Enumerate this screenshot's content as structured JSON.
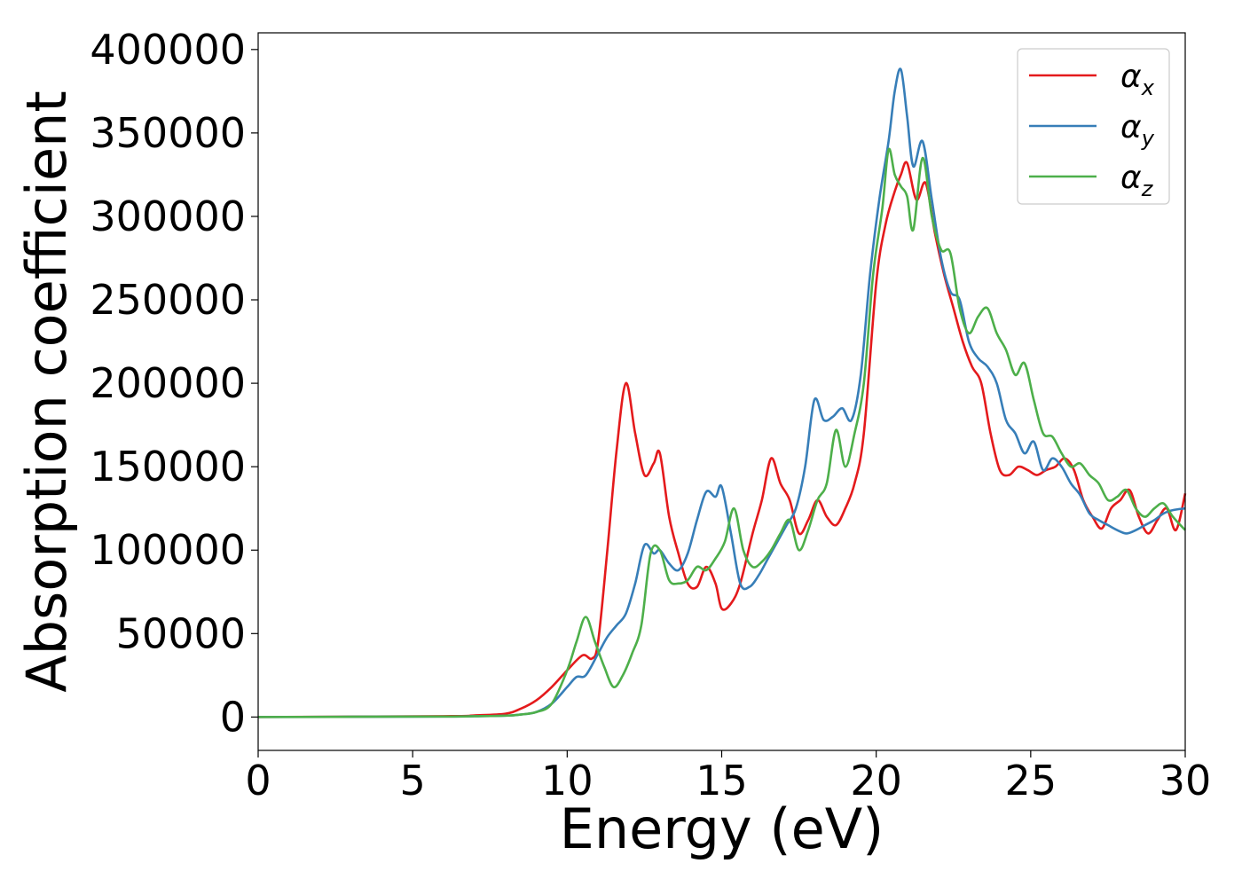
{
  "chart_data": {
    "type": "line",
    "title": "",
    "xlabel": "Energy (eV)",
    "ylabel": "Absorption coefficient",
    "xlim": [
      0,
      30
    ],
    "ylim": [
      -20000,
      410000
    ],
    "xticks": [
      0,
      5,
      10,
      15,
      20,
      25,
      30
    ],
    "xtick_labels": [
      "0",
      "5",
      "10",
      "15",
      "20",
      "25",
      "30"
    ],
    "yticks": [
      0,
      50000,
      100000,
      150000,
      200000,
      250000,
      300000,
      350000,
      400000
    ],
    "ytick_labels": [
      "0",
      "50000",
      "100000",
      "150000",
      "200000",
      "250000",
      "300000",
      "350000",
      "400000"
    ],
    "grid": false,
    "legend_position": "top-right",
    "series": [
      {
        "name": "α",
        "subscript": "x",
        "color": "#e41a1c",
        "x": [
          0,
          6,
          7,
          8,
          8.5,
          9,
          9.5,
          10,
          10.5,
          10.8,
          11,
          11.3,
          11.6,
          11.9,
          12.2,
          12.5,
          12.8,
          13,
          13.3,
          13.6,
          13.9,
          14.2,
          14.5,
          14.8,
          15,
          15.3,
          15.6,
          16,
          16.3,
          16.6,
          16.9,
          17.2,
          17.5,
          17.8,
          18.1,
          18.4,
          18.7,
          19,
          19.3,
          19.6,
          20,
          20.3,
          20.6,
          20.8,
          21,
          21.3,
          21.6,
          21.9,
          22.2,
          22.5,
          22.8,
          23.1,
          23.4,
          23.7,
          24,
          24.3,
          24.6,
          24.9,
          25.2,
          25.5,
          25.8,
          26.1,
          26.4,
          26.7,
          27,
          27.3,
          27.6,
          27.9,
          28.2,
          28.5,
          28.8,
          29.1,
          29.4,
          29.7,
          30
        ],
        "y": [
          0,
          500,
          1000,
          2000,
          5000,
          10000,
          18000,
          28000,
          37000,
          35000,
          45000,
          100000,
          160000,
          200000,
          170000,
          145000,
          152000,
          158000,
          120000,
          98000,
          80000,
          78000,
          90000,
          80000,
          65000,
          68000,
          80000,
          110000,
          130000,
          155000,
          140000,
          130000,
          110000,
          118000,
          130000,
          120000,
          115000,
          125000,
          140000,
          170000,
          260000,
          295000,
          315000,
          325000,
          332000,
          310000,
          320000,
          290000,
          265000,
          245000,
          225000,
          210000,
          200000,
          170000,
          148000,
          145000,
          150000,
          148000,
          145000,
          148000,
          150000,
          155000,
          148000,
          130000,
          120000,
          113000,
          125000,
          130000,
          136000,
          120000,
          110000,
          118000,
          125000,
          112000,
          134000
        ]
      },
      {
        "name": "α",
        "subscript": "y",
        "color": "#377eb8",
        "x": [
          0,
          6,
          7,
          8,
          8.5,
          9,
          9.5,
          10,
          10.3,
          10.6,
          11,
          11.3,
          11.6,
          11.9,
          12.2,
          12.5,
          12.8,
          13,
          13.3,
          13.6,
          13.9,
          14.2,
          14.5,
          14.8,
          15,
          15.3,
          15.6,
          15.9,
          16.2,
          16.5,
          16.8,
          17.1,
          17.4,
          17.7,
          18,
          18.3,
          18.6,
          18.9,
          19.2,
          19.5,
          19.8,
          20.1,
          20.4,
          20.6,
          20.8,
          21,
          21.2,
          21.5,
          21.8,
          22.1,
          22.4,
          22.7,
          23,
          23.3,
          23.6,
          23.9,
          24.2,
          24.5,
          24.8,
          25.1,
          25.4,
          25.7,
          26,
          26.3,
          26.6,
          26.9,
          27.2,
          27.5,
          27.8,
          28.1,
          28.4,
          28.7,
          29,
          29.3,
          29.6,
          30
        ],
        "y": [
          0,
          300,
          500,
          800,
          1500,
          3000,
          8000,
          18000,
          24000,
          25000,
          38000,
          48000,
          55000,
          62000,
          80000,
          103000,
          98000,
          100000,
          92000,
          88000,
          98000,
          118000,
          135000,
          132000,
          138000,
          110000,
          80000,
          78000,
          85000,
          95000,
          105000,
          115000,
          125000,
          150000,
          190000,
          178000,
          180000,
          185000,
          178000,
          205000,
          265000,
          310000,
          345000,
          375000,
          388000,
          360000,
          330000,
          345000,
          310000,
          275000,
          255000,
          250000,
          225000,
          215000,
          210000,
          200000,
          178000,
          170000,
          158000,
          165000,
          148000,
          155000,
          150000,
          140000,
          133000,
          122000,
          118000,
          115000,
          112000,
          110000,
          112000,
          115000,
          118000,
          122000,
          124000,
          125000
        ]
      },
      {
        "name": "α",
        "subscript": "z",
        "color": "#4daf4a",
        "x": [
          0,
          6,
          7,
          8,
          8.5,
          9,
          9.5,
          10,
          10.3,
          10.6,
          10.9,
          11.2,
          11.5,
          11.8,
          12.1,
          12.4,
          12.7,
          13,
          13.3,
          13.6,
          13.9,
          14.2,
          14.5,
          14.8,
          15.1,
          15.4,
          15.7,
          16,
          16.3,
          16.6,
          16.9,
          17.2,
          17.5,
          17.8,
          18.1,
          18.4,
          18.7,
          19,
          19.3,
          19.6,
          19.9,
          20.2,
          20.4,
          20.6,
          20.8,
          21,
          21.2,
          21.5,
          21.8,
          22.1,
          22.4,
          22.7,
          23,
          23.3,
          23.6,
          23.9,
          24.2,
          24.5,
          24.8,
          25.1,
          25.4,
          25.7,
          26,
          26.3,
          26.6,
          26.9,
          27.2,
          27.5,
          27.8,
          28.1,
          28.4,
          28.7,
          29,
          29.3,
          29.6,
          30
        ],
        "y": [
          0,
          300,
          500,
          800,
          1500,
          3000,
          8000,
          28000,
          45000,
          60000,
          45000,
          30000,
          18000,
          25000,
          38000,
          55000,
          98000,
          100000,
          82000,
          80000,
          82000,
          90000,
          88000,
          95000,
          105000,
          125000,
          100000,
          90000,
          93000,
          100000,
          110000,
          118000,
          100000,
          112000,
          130000,
          140000,
          172000,
          150000,
          170000,
          200000,
          265000,
          305000,
          340000,
          325000,
          318000,
          312000,
          292000,
          335000,
          300000,
          280000,
          278000,
          245000,
          230000,
          240000,
          245000,
          230000,
          220000,
          205000,
          212000,
          190000,
          170000,
          168000,
          158000,
          150000,
          152000,
          145000,
          140000,
          130000,
          132000,
          136000,
          125000,
          120000,
          125000,
          128000,
          120000,
          112000
        ]
      }
    ]
  }
}
